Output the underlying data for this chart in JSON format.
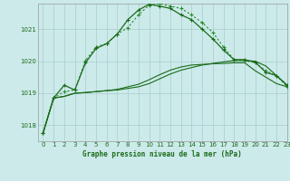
{
  "title": "Graphe pression niveau de la mer (hPa)",
  "background_color": "#cceaea",
  "grid_color": "#aacccc",
  "line_color_dark": "#1a6b1a",
  "line_color_light": "#2a8c2a",
  "xlim": [
    -0.5,
    23
  ],
  "ylim": [
    1017.5,
    1021.8
  ],
  "yticks": [
    1018,
    1019,
    1020,
    1021
  ],
  "xticks": [
    0,
    1,
    2,
    3,
    4,
    5,
    6,
    7,
    8,
    9,
    10,
    11,
    12,
    13,
    14,
    15,
    16,
    17,
    18,
    19,
    20,
    21,
    22,
    23
  ],
  "series": {
    "line_dotted_x": [
      0,
      1,
      2,
      3,
      4,
      5,
      6,
      7,
      8,
      9,
      10,
      11,
      12,
      13,
      14,
      15,
      16,
      17,
      18,
      19,
      20,
      21,
      22,
      23
    ],
    "line_dotted_y": [
      1017.75,
      1018.85,
      1019.05,
      1019.1,
      1020.02,
      1020.45,
      1020.55,
      1020.85,
      1021.05,
      1021.45,
      1021.75,
      1021.8,
      1021.72,
      1021.65,
      1021.45,
      1021.2,
      1020.9,
      1020.45,
      1020.05,
      1020.02,
      1019.95,
      1019.7,
      1019.55,
      1019.2
    ],
    "line_solid_markers_x": [
      0,
      1,
      2,
      3,
      4,
      5,
      6,
      7,
      8,
      9,
      10,
      11,
      12,
      13,
      14,
      15,
      16,
      17,
      18,
      19,
      20,
      21,
      22,
      23
    ],
    "line_solid_markers_y": [
      1017.75,
      1018.85,
      1019.25,
      1019.1,
      1019.95,
      1020.4,
      1020.55,
      1020.85,
      1021.3,
      1021.6,
      1021.78,
      1021.72,
      1021.65,
      1021.45,
      1021.3,
      1021.0,
      1020.7,
      1020.35,
      1020.05,
      1020.05,
      1019.97,
      1019.65,
      1019.55,
      1019.25
    ],
    "line_flat1_x": [
      0,
      1,
      2,
      3,
      4,
      5,
      6,
      7,
      8,
      9,
      10,
      11,
      12,
      13,
      14,
      15,
      16,
      17,
      18,
      19,
      20,
      21,
      22,
      23
    ],
    "line_flat1_y": [
      1017.75,
      1018.85,
      1018.9,
      1019.0,
      1019.02,
      1019.05,
      1019.08,
      1019.1,
      1019.15,
      1019.2,
      1019.3,
      1019.45,
      1019.6,
      1019.72,
      1019.8,
      1019.88,
      1019.93,
      1019.98,
      1020.02,
      1020.02,
      1020.0,
      1019.85,
      1019.55,
      1019.25
    ],
    "line_flat2_x": [
      0,
      1,
      2,
      3,
      4,
      5,
      6,
      7,
      8,
      9,
      10,
      11,
      12,
      13,
      14,
      15,
      16,
      17,
      18,
      19,
      20,
      21,
      22,
      23
    ],
    "line_flat2_y": [
      1017.75,
      1018.85,
      1018.9,
      1019.0,
      1019.02,
      1019.05,
      1019.08,
      1019.12,
      1019.2,
      1019.28,
      1019.42,
      1019.58,
      1019.72,
      1019.82,
      1019.88,
      1019.9,
      1019.92,
      1019.93,
      1019.95,
      1019.95,
      1019.7,
      1019.5,
      1019.3,
      1019.2
    ]
  }
}
